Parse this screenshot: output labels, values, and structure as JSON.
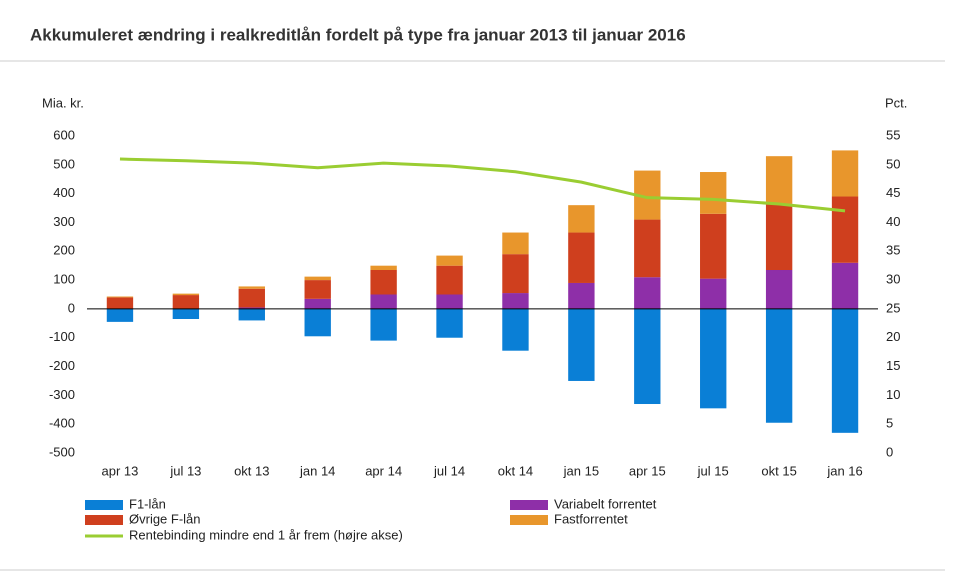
{
  "chart_data": {
    "type": "bar",
    "title": "Akkumuleret ændring i realkreditlån fordelt på type fra januar 2013 til januar 2016",
    "y_label": "Mia. kr.",
    "y2_label": "Pct.",
    "categories": [
      "apr 13",
      "jul 13",
      "okt 13",
      "jan 14",
      "apr 14",
      "jul 14",
      "okt 14",
      "jan 15",
      "apr 15",
      "jul 15",
      "okt 15",
      "jan 16"
    ],
    "series": [
      {
        "name": "F1-lån",
        "color": "#0a7fd6",
        "values": [
          -45,
          -35,
          -40,
          -95,
          -110,
          -100,
          -145,
          -250,
          -330,
          -345,
          -395,
          -430
        ]
      },
      {
        "name": "Variabelt forrentet",
        "color": "#8e2fa8",
        "values": [
          0,
          0,
          5,
          35,
          50,
          50,
          55,
          90,
          110,
          105,
          135,
          160
        ]
      },
      {
        "name": "Øvrige F-lån",
        "color": "#cf3f1e",
        "values": [
          40,
          48,
          65,
          65,
          85,
          100,
          135,
          175,
          200,
          225,
          230,
          230
        ]
      },
      {
        "name": "Fastforrentet",
        "color": "#e8962c",
        "values": [
          3,
          5,
          8,
          12,
          15,
          35,
          75,
          95,
          170,
          145,
          165,
          160
        ]
      },
      {
        "name": "Rentebinding mindre end 1 år frem (højre akse)",
        "color": "#9acd32",
        "type": "line",
        "axis": "y2",
        "values": [
          51,
          50.7,
          50.3,
          49.5,
          50.3,
          49.8,
          48.8,
          47,
          44.3,
          44,
          43.2,
          42
        ]
      }
    ],
    "ylim": [
      -500,
      600
    ],
    "yticks": [
      -500,
      -400,
      -300,
      -200,
      -100,
      0,
      100,
      200,
      300,
      400,
      500,
      600
    ],
    "y2lim": [
      0,
      55
    ],
    "y2ticks": [
      0,
      5,
      10,
      15,
      20,
      25,
      30,
      35,
      40,
      45,
      50,
      55
    ]
  }
}
